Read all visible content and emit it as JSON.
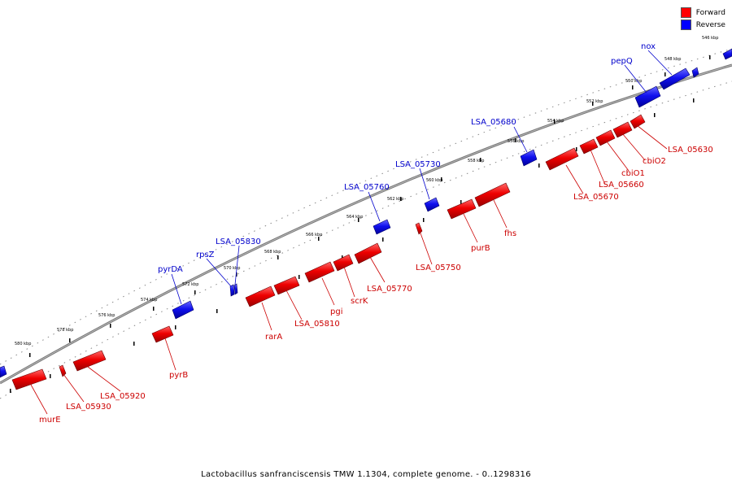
{
  "legend": {
    "forward_label": "Forward",
    "reverse_label": "Reverse",
    "forward_color": "#ff0000",
    "reverse_color": "#0000ff"
  },
  "caption": "Lactobacillus sanfranciscensis TMW 1.1304, complete genome. - 0..1298316",
  "ruler": {
    "unit": "kbp",
    "ticks": [
      546,
      548,
      550,
      552,
      554,
      556,
      558,
      560,
      562,
      564,
      566,
      568,
      570,
      572,
      574,
      576,
      578,
      580
    ]
  },
  "genes": {
    "reverse": [
      {
        "label": "nox"
      },
      {
        "label": "pepQ"
      },
      {
        "label": "LSA_05680"
      },
      {
        "label": "LSA_05730"
      },
      {
        "label": "LSA_05760"
      },
      {
        "label": "LSA_05830"
      },
      {
        "label": "rpsZ"
      },
      {
        "label": "pyrDA"
      }
    ],
    "forward": [
      {
        "label": "LSA_05630"
      },
      {
        "label": "cbiO2"
      },
      {
        "label": "cbiO1"
      },
      {
        "label": "LSA_05660"
      },
      {
        "label": "LSA_05670"
      },
      {
        "label": "fhs"
      },
      {
        "label": "purB"
      },
      {
        "label": "LSA_05750"
      },
      {
        "label": "LSA_05770"
      },
      {
        "label": "scrK"
      },
      {
        "label": "pgi"
      },
      {
        "label": "LSA_05810"
      },
      {
        "label": "rarA"
      },
      {
        "label": "pyrB"
      },
      {
        "label": "LSA_05920"
      },
      {
        "label": "LSA_05930"
      },
      {
        "label": "murE"
      }
    ]
  }
}
